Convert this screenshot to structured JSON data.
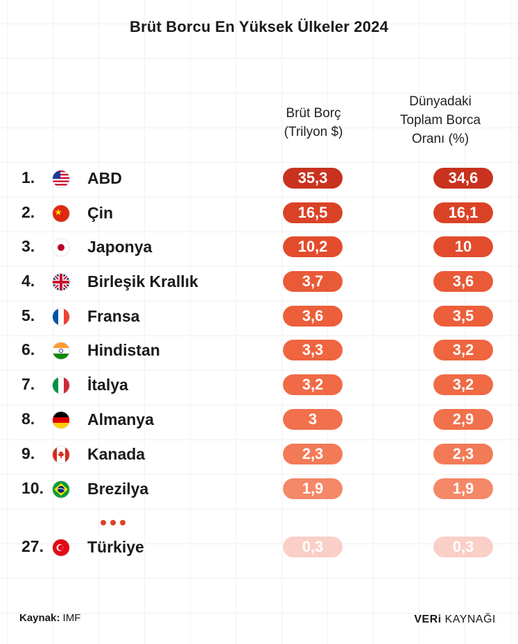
{
  "chart_data": {
    "type": "table",
    "title": "Brüt Borcu En Yüksek Ülkeler 2024",
    "columns": [
      {
        "key": "debt",
        "label_lines": [
          "Brüt Borç",
          "(Trilyon $)"
        ]
      },
      {
        "key": "share",
        "label_lines": [
          "Dünyadaki",
          "Toplam Borca",
          "Oranı (%)"
        ]
      }
    ],
    "rows": [
      {
        "rank": "1.",
        "country": "ABD",
        "flag": "us-flag-icon",
        "debt": "35,3",
        "share": "34,6",
        "color": "#c8321f"
      },
      {
        "rank": "2.",
        "country": "Çin",
        "flag": "china-flag-icon",
        "debt": "16,5",
        "share": "16,1",
        "color": "#da4226"
      },
      {
        "rank": "3.",
        "country": "Japonya",
        "flag": "japan-flag-icon",
        "debt": "10,2",
        "share": "10",
        "color": "#e24c2c"
      },
      {
        "rank": "4.",
        "country": "Birleşik Krallık",
        "flag": "uk-flag-icon",
        "debt": "3,7",
        "share": "3,6",
        "color": "#e95a36"
      },
      {
        "rank": "5.",
        "country": "Fransa",
        "flag": "france-flag-icon",
        "debt": "3,6",
        "share": "3,5",
        "color": "#ec5f3a"
      },
      {
        "rank": "6.",
        "country": "Hindistan",
        "flag": "india-flag-icon",
        "debt": "3,3",
        "share": "3,2",
        "color": "#ee6540"
      },
      {
        "rank": "7.",
        "country": "İtalya",
        "flag": "italy-flag-icon",
        "debt": "3,2",
        "share": "3,2",
        "color": "#ef6a45"
      },
      {
        "rank": "8.",
        "country": "Almanya",
        "flag": "germany-flag-icon",
        "debt": "3",
        "share": "2,9",
        "color": "#f0714c"
      },
      {
        "rank": "9.",
        "country": "Kanada",
        "flag": "canada-flag-icon",
        "debt": "2,3",
        "share": "2,3",
        "color": "#f27a56"
      },
      {
        "rank": "10.",
        "country": "Brezilya",
        "flag": "brazil-flag-icon",
        "debt": "1,9",
        "share": "1,9",
        "color": "#f48868"
      },
      {
        "rank": "27.",
        "country": "Türkiye",
        "flag": "turkey-flag-icon",
        "debt": "0,3",
        "share": "0,3",
        "color": "#f9cfc7"
      }
    ]
  },
  "footer": {
    "source_label": "Kaynak:",
    "source_value": "IMF",
    "brand_bold": "VERi",
    "brand_rest": "KAYNAĞI"
  }
}
